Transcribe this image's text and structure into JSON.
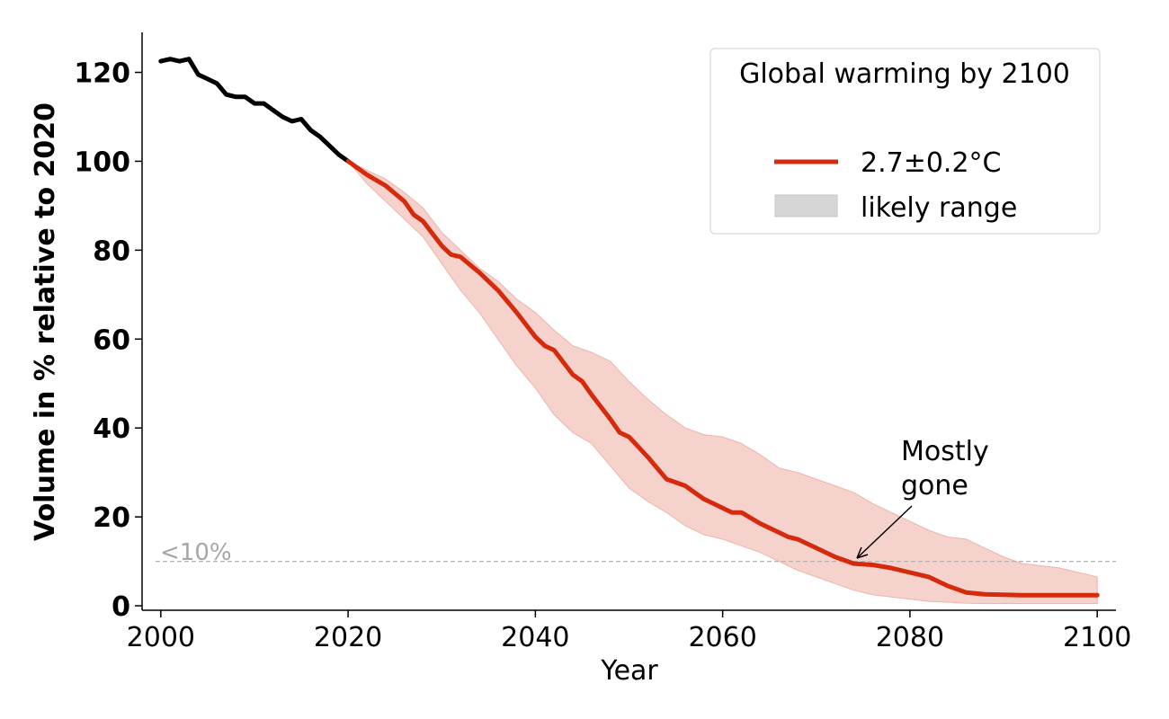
{
  "chart_data": {
    "type": "line",
    "xlabel": "Year",
    "ylabel": "Volume in % relative to 2020",
    "xlim": [
      1998,
      2102
    ],
    "ylim": [
      -1,
      129
    ],
    "xticks": [
      2000,
      2020,
      2040,
      2060,
      2080,
      2100
    ],
    "yticks": [
      0,
      20,
      40,
      60,
      80,
      100,
      120
    ],
    "xtick_labels": [
      "2000",
      "2020",
      "2040",
      "2060",
      "2080",
      "2100"
    ],
    "ytick_labels": [
      "0",
      "20",
      "40",
      "60",
      "80",
      "100",
      "120"
    ],
    "legend": {
      "title": "Global warming by 2100",
      "position": "top-right",
      "entries": [
        {
          "label": "2.7±0.2°C",
          "kind": "line",
          "color": "#d62a0c"
        },
        {
          "label": "likely range",
          "kind": "patch",
          "color": "#d6d6d6"
        }
      ]
    },
    "series": [
      {
        "name": "historical",
        "color": "#000000",
        "x": [
          2000,
          2001,
          2002,
          2003,
          2004,
          2005,
          2006,
          2007,
          2008,
          2009,
          2010,
          2011,
          2012,
          2013,
          2014,
          2015,
          2016,
          2017,
          2018,
          2019,
          2020
        ],
        "y": [
          122.5,
          123,
          122.5,
          123,
          119.5,
          118.5,
          117.5,
          115,
          114.5,
          114.5,
          113,
          113,
          111.5,
          110,
          109,
          109.5,
          107,
          105.5,
          103.5,
          101.5,
          100
        ]
      },
      {
        "name": "2.7±0.2°C",
        "color": "#d62a0c",
        "x": [
          2020,
          2022,
          2024,
          2026,
          2027,
          2028,
          2030,
          2031,
          2032,
          2034,
          2036,
          2038,
          2040,
          2041,
          2042,
          2044,
          2045,
          2046,
          2048,
          2049,
          2050,
          2052,
          2054,
          2056,
          2058,
          2060,
          2061,
          2062,
          2064,
          2066,
          2067,
          2068,
          2070,
          2072,
          2074,
          2076,
          2078,
          2080,
          2081,
          2082,
          2084,
          2086,
          2088,
          2090,
          2092,
          2094,
          2096,
          2098,
          2100
        ],
        "y": [
          100,
          97,
          94.5,
          91,
          88,
          86.5,
          81,
          79,
          78.5,
          75,
          71,
          66,
          60.5,
          58.5,
          57.5,
          52,
          50.5,
          47.5,
          42,
          39,
          38,
          33.5,
          28.5,
          27,
          24,
          22,
          21,
          21,
          18.5,
          16.5,
          15.5,
          15,
          13,
          11,
          9.5,
          9.2,
          8.5,
          7.5,
          7,
          6.5,
          4.5,
          3,
          2.6,
          2.5,
          2.4,
          2.4,
          2.4,
          2.4,
          2.4
        ]
      },
      {
        "name": "likely range",
        "color": "#f5cdc8",
        "x": [
          2020,
          2022,
          2024,
          2026,
          2028,
          2030,
          2032,
          2034,
          2036,
          2038,
          2040,
          2042,
          2044,
          2046,
          2048,
          2050,
          2052,
          2054,
          2056,
          2058,
          2060,
          2062,
          2064,
          2066,
          2068,
          2070,
          2072,
          2074,
          2076,
          2078,
          2080,
          2082,
          2084,
          2086,
          2088,
          2090,
          2092,
          2094,
          2096,
          2098,
          2100
        ],
        "upper": [
          100,
          98,
          96,
          93,
          89.5,
          84,
          80,
          76,
          73,
          69,
          66,
          62,
          58.5,
          57,
          55,
          50.5,
          46.5,
          43,
          40,
          38.5,
          38,
          36.5,
          34,
          31,
          30,
          28.5,
          27,
          25.5,
          23,
          21,
          19,
          17,
          15.5,
          15,
          13,
          11,
          9.5,
          9,
          8.5,
          7.5,
          6.5
        ],
        "lower": [
          100,
          95,
          91,
          87,
          83,
          77,
          71,
          66,
          60,
          54,
          49,
          43,
          39,
          36.5,
          31.5,
          26.5,
          23.5,
          21,
          18,
          16,
          15,
          13.5,
          12,
          10,
          8,
          6.5,
          5,
          3.5,
          2.5,
          2,
          1.5,
          1,
          0.8,
          0.6,
          0.5,
          0.5,
          0.5,
          0.5,
          0.5,
          0.5,
          0.5
        ]
      }
    ],
    "threshold": {
      "y": 10,
      "label": "<10%",
      "color": "#b3b3b3"
    },
    "annotation": {
      "text_line1": "Mostly",
      "text_line2": "gone",
      "target_x": 2074,
      "target_y": 9.5,
      "text_x": 2079,
      "text_y": 33
    }
  }
}
